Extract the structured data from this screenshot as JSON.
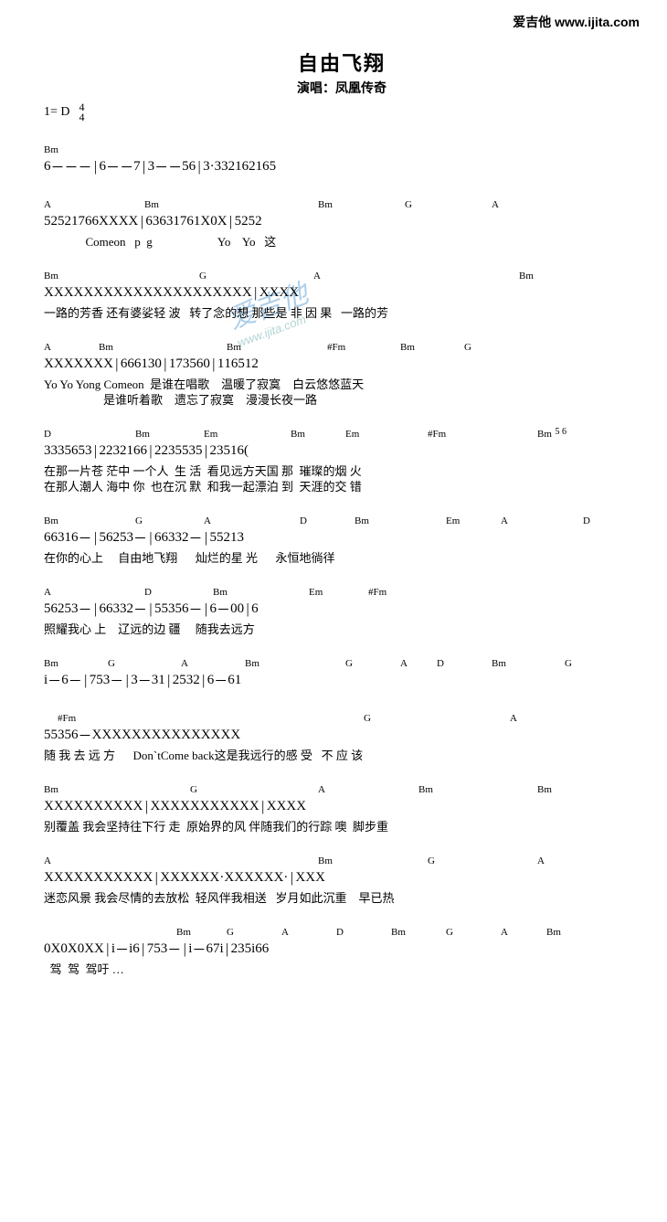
{
  "site": {
    "brand": "爱吉他",
    "url": "www.ijita.com"
  },
  "header": {
    "title": "自由飞翔",
    "performer_label": "演唱：",
    "performer": "凤凰传奇",
    "key": "1= D",
    "time_num": "4",
    "time_den": "4"
  },
  "watermark": {
    "text": "爱吉他",
    "url": "www.ijita.com"
  },
  "lines": [
    {
      "chords": [
        [
          "Bm",
          0
        ]
      ],
      "notes": "6  －  －  －  | 6  －  －  7  | 3  －  －  5 6 | 3 ·  3 3 2 1 6 2 1 6 5",
      "lyric": ""
    },
    {
      "chords": [
        [
          "A",
          0
        ],
        [
          "Bm",
          110
        ],
        [
          "Bm",
          300
        ],
        [
          "G",
          395
        ],
        [
          "A",
          490
        ]
      ],
      "notes": "5 2 5 2 1 7 6  6  X  X  X X | 6 3 6 3 1 7 6  1  X  0  X | 5 2 5 2",
      "lyric": "              Comeon   p  g                      Yo    Yo   这"
    },
    {
      "chords": [
        [
          "Bm",
          0
        ],
        [
          "G",
          170
        ],
        [
          "A",
          295
        ],
        [
          "Bm",
          520
        ]
      ],
      "notes": "X X X X  X X X X X X   X X X X X X X X X X X | X X X X",
      "lyric": "一路的芳香 还有婆娑轻 波   转了念的想 那些是 非 因 果   一路的芳"
    },
    {
      "chords": [
        [
          "A",
          0
        ],
        [
          "Bm",
          60
        ],
        [
          "Bm",
          200
        ],
        [
          "#Fm",
          310
        ],
        [
          "Bm",
          390
        ],
        [
          "G",
          460
        ]
      ],
      "notes": "X  X  X X X  X X | 6 6 6 1 3 0 | 1 7 3 5 6 0 | 1 1 6 5 1 2",
      "lyric": "Yo Yo Yong Comeon  是谁在唱歌    温暖了寂寞    白云悠悠蓝天",
      "lyric2": "                    是谁听着歌    遗忘了寂寞    漫漫长夜一路"
    },
    {
      "chords": [
        [
          "D",
          0
        ],
        [
          "Bm",
          100
        ],
        [
          "Em",
          175
        ],
        [
          "Bm",
          270
        ],
        [
          "Em",
          330
        ],
        [
          "#Fm",
          420
        ],
        [
          "Bm",
          540
        ]
      ],
      "notes": "3 3 3 5 6  5 3 | 2 2 3 2 1 6 6 | 2 2 3 5 5 3  5 | 2 3 5 1  6  (",
      "lyric": "在那一片苍 茫中 一个人  生 活  看见远方天国 那  璀璨的烟 火",
      "lyric2": "在那人潮人 海中 你  也在沉 默  和我一起漂泊 到  天涯的交 错",
      "extra_notes": "5 6"
    },
    {
      "chords": [
        [
          "Bm",
          0
        ],
        [
          "G",
          100
        ],
        [
          "A",
          175
        ],
        [
          "D",
          280
        ],
        [
          "Bm",
          340
        ],
        [
          "Em",
          440
        ],
        [
          "A",
          500
        ],
        [
          "D",
          590
        ]
      ],
      "notes": "6 6 3 1 6  － | 5 6 2 5  3  － | 6 6 3 3  2  － | 5 5 2 1  3",
      "lyric": "在你的心上     自由地飞翔      灿烂的星 光      永恒地徜徉"
    },
    {
      "chords": [
        [
          "A",
          0
        ],
        [
          "D",
          110
        ],
        [
          "Bm",
          185
        ],
        [
          "Em",
          290
        ],
        [
          "#Fm",
          355
        ]
      ],
      "notes": "5 6 2 5  3 － | 6 6 3 3  2 － | 5 5 3 5  6 － | 6 － 0 0 | 6",
      "lyric": "照耀我心 上    辽远的边 疆     随我去远方"
    },
    {
      "chords": [
        [
          "Bm",
          0
        ],
        [
          "G",
          70
        ],
        [
          "A",
          150
        ],
        [
          "Bm",
          220
        ],
        [
          "G",
          330
        ],
        [
          "A",
          390
        ],
        [
          "D",
          430
        ],
        [
          "Bm",
          490
        ],
        [
          "G",
          570
        ]
      ],
      "notes": "i － 6 － | 7 5 3 － | 3 － 3 1 | 2 5 3 2 | 6 － 6 1",
      "lyric": ""
    },
    {
      "chords": [
        [
          "#Fm",
          15
        ],
        [
          "G",
          350
        ],
        [
          "A",
          510
        ]
      ],
      "notes": "5 5 3 5 6    －    X  X  X  X   X X X X X X X X   X  X  X",
      "lyric": "随 我 去 远 方      Don`tCome back这是我远行的感 受   不 应 该"
    },
    {
      "chords": [
        [
          "Bm",
          0
        ],
        [
          "G",
          160
        ],
        [
          "A",
          300
        ],
        [
          "Bm",
          410
        ],
        [
          "Bm",
          540
        ]
      ],
      "notes": "X X X  X X X X X X X  | X X X X X  X X X X X X  | X X X X",
      "lyric": "别覆盖 我会坚持往下行 走  原始界的风 伴随我们的行踪 噢  脚步重"
    },
    {
      "chords": [
        [
          "A",
          0
        ],
        [
          "Bm",
          300
        ],
        [
          "G",
          420
        ],
        [
          "A",
          540
        ]
      ],
      "notes": "X X X X  X X X X X X X | X X X X X X ·  X X X X X X · | X X X",
      "lyric": "迷恋风景 我会尽情的去放松  轻风伴我相送   岁月如此沉重    早已热"
    },
    {
      "chords": [
        [
          "Bm",
          145
        ],
        [
          "G",
          200
        ],
        [
          "A",
          260
        ],
        [
          "D",
          320
        ],
        [
          "Bm",
          380
        ],
        [
          "G",
          440
        ],
        [
          "A",
          500
        ],
        [
          "Bm",
          550
        ]
      ],
      "notes": "0 X 0 X 0 X X | i － i 6 | 7 5 3 － | i － 6 7 i | 2 3 5 i 6 6",
      "lyric": "  驾  驾  驾吁 …"
    }
  ]
}
